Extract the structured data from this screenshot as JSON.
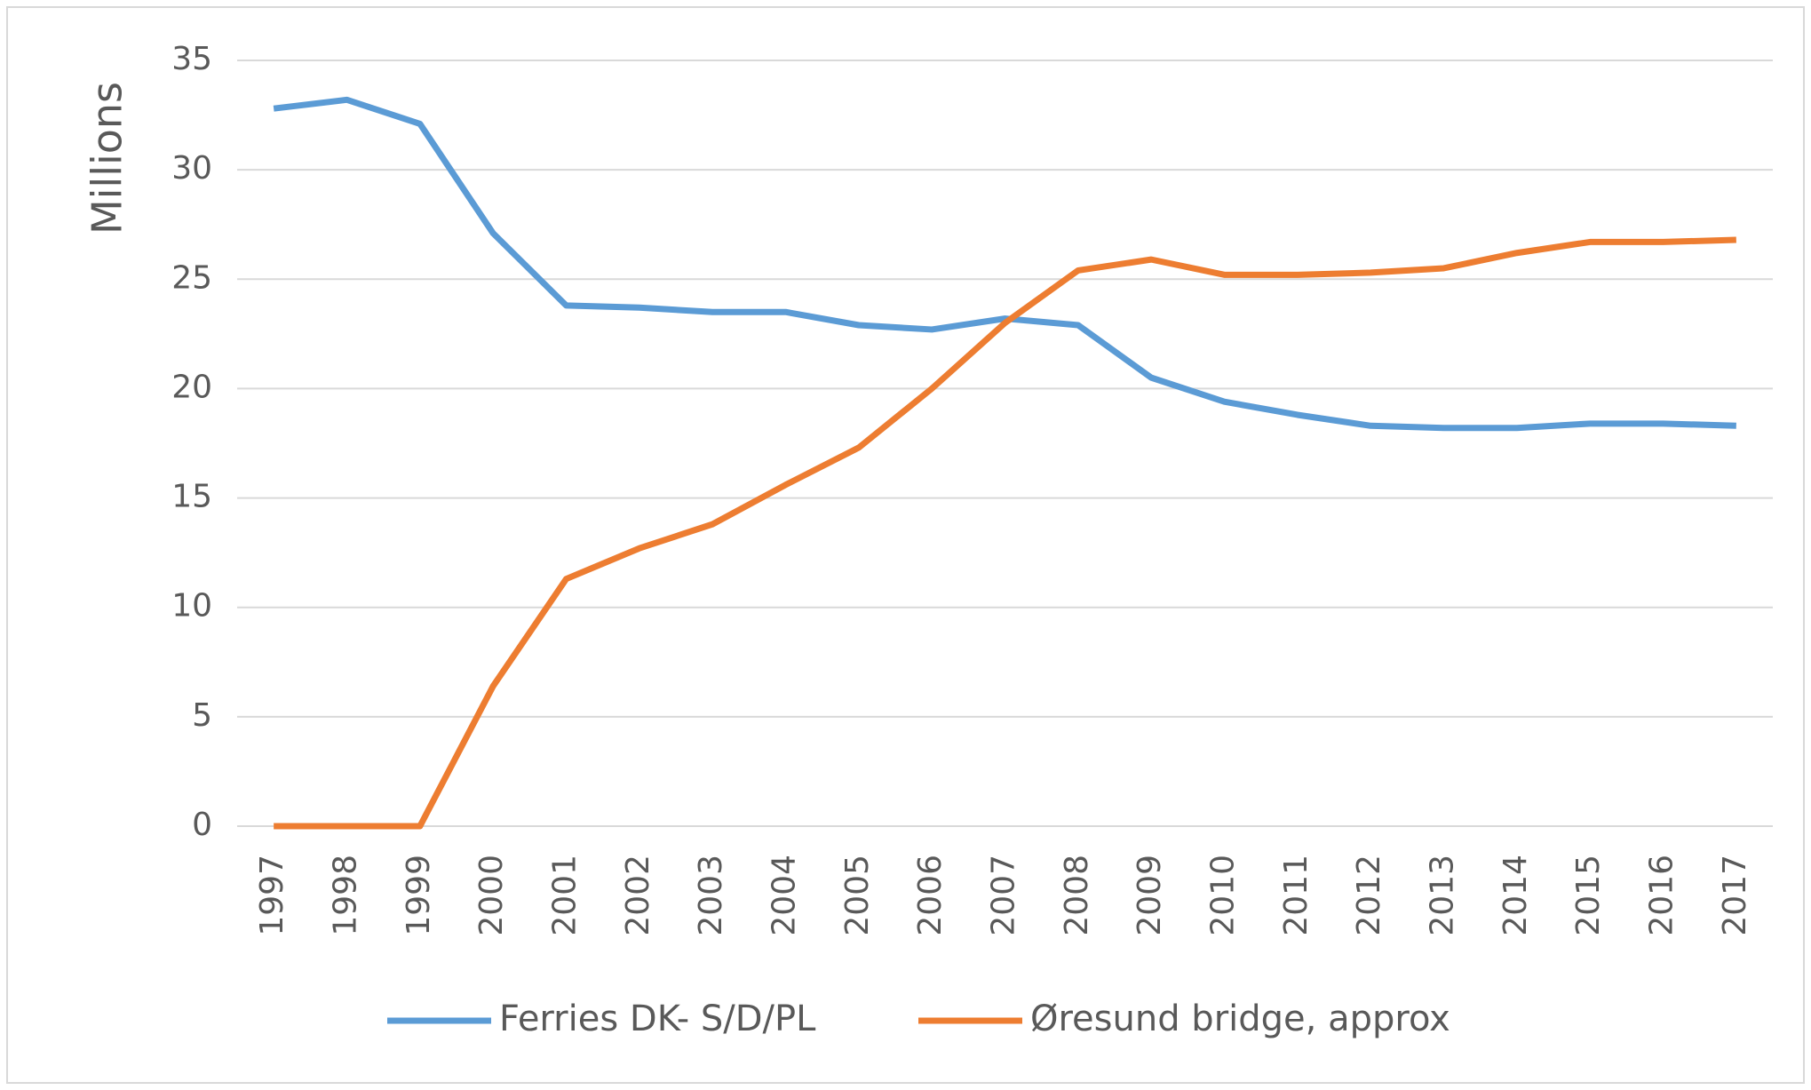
{
  "chart_data": {
    "type": "line",
    "ylabel": "Millions",
    "categories": [
      "1997",
      "1998",
      "1999",
      "2000",
      "2001",
      "2002",
      "2003",
      "2004",
      "2005",
      "2006",
      "2007",
      "2008",
      "2009",
      "2010",
      "2011",
      "2012",
      "2013",
      "2014",
      "2015",
      "2016",
      "2017"
    ],
    "series": [
      {
        "name": "Ferries DK- S/D/PL",
        "color": "#5b9bd5",
        "values": [
          32.8,
          33.2,
          32.1,
          27.1,
          23.8,
          23.7,
          23.5,
          23.5,
          22.9,
          22.7,
          23.2,
          22.9,
          20.5,
          19.4,
          18.8,
          18.3,
          18.2,
          18.2,
          18.4,
          18.4,
          18.3
        ]
      },
      {
        "name": "Øresund bridge, approx",
        "color": "#ed7d31",
        "values": [
          0,
          0,
          0,
          6.4,
          11.3,
          12.7,
          13.8,
          15.6,
          17.3,
          20.0,
          23.0,
          25.4,
          25.9,
          25.2,
          25.2,
          25.3,
          25.5,
          26.2,
          26.7,
          26.7,
          26.8
        ]
      }
    ],
    "ylim": [
      0,
      35
    ],
    "yticks": [
      0,
      5,
      10,
      15,
      20,
      25,
      30,
      35
    ],
    "grid": true,
    "legend": "bottom"
  }
}
